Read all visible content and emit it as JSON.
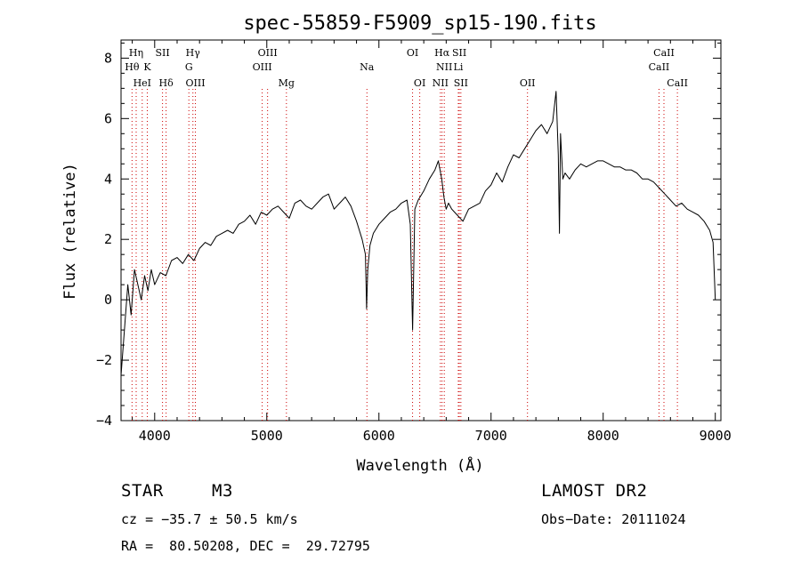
{
  "chart_data": {
    "type": "line",
    "title": "spec-55859-F5909_sp15-190.fits",
    "xlabel": "Wavelength (Å)",
    "ylabel": "Flux (relative)",
    "xlim": [
      3700,
      9050
    ],
    "ylim": [
      -4,
      8.6
    ],
    "xticks": [
      4000,
      5000,
      6000,
      7000,
      8000,
      9000
    ],
    "yticks": [
      -4,
      -2,
      0,
      2,
      4,
      6,
      8
    ],
    "grid": false,
    "line_color": "#000000",
    "marker_color": "#cc0000",
    "series": [
      {
        "x": [
          3700,
          3730,
          3760,
          3790,
          3820,
          3850,
          3880,
          3910,
          3940,
          3970,
          4000,
          4050,
          4100,
          4150,
          4200,
          4250,
          4300,
          4350,
          4400,
          4450,
          4500,
          4550,
          4600,
          4650,
          4700,
          4750,
          4800,
          4850,
          4900,
          4950,
          5000,
          5050,
          5100,
          5150,
          5200,
          5250,
          5300,
          5350,
          5400,
          5450,
          5500,
          5550,
          5600,
          5650,
          5700,
          5750,
          5800,
          5850,
          5880,
          5890,
          5900,
          5920,
          5950,
          6000,
          6050,
          6100,
          6150,
          6200,
          6250,
          6280,
          6300,
          6320,
          6350,
          6400,
          6450,
          6500,
          6530,
          6560,
          6580,
          6600,
          6620,
          6650,
          6700,
          6750,
          6800,
          6850,
          6900,
          6950,
          7000,
          7050,
          7100,
          7150,
          7200,
          7250,
          7300,
          7350,
          7400,
          7450,
          7500,
          7550,
          7580,
          7600,
          7610,
          7620,
          7640,
          7660,
          7700,
          7750,
          7800,
          7850,
          7900,
          7950,
          8000,
          8050,
          8100,
          8150,
          8200,
          8250,
          8300,
          8350,
          8400,
          8450,
          8500,
          8550,
          8600,
          8650,
          8700,
          8750,
          8800,
          8850,
          8900,
          8950,
          8980,
          9000
        ],
        "y": [
          -2.5,
          -1.0,
          0.5,
          -0.5,
          1.0,
          0.5,
          0.0,
          0.8,
          0.3,
          1.0,
          0.5,
          0.9,
          0.8,
          1.3,
          1.4,
          1.2,
          1.5,
          1.3,
          1.7,
          1.9,
          1.8,
          2.1,
          2.2,
          2.3,
          2.2,
          2.5,
          2.6,
          2.8,
          2.5,
          2.9,
          2.8,
          3.0,
          3.1,
          2.9,
          2.7,
          3.2,
          3.3,
          3.1,
          3.0,
          3.2,
          3.4,
          3.5,
          3.0,
          3.2,
          3.4,
          3.1,
          2.6,
          2.0,
          1.5,
          -0.3,
          1.0,
          1.8,
          2.2,
          2.5,
          2.7,
          2.9,
          3.0,
          3.2,
          3.3,
          2.5,
          -1.0,
          3.0,
          3.3,
          3.6,
          4.0,
          4.3,
          4.6,
          4.0,
          3.4,
          3.0,
          3.2,
          3.0,
          2.8,
          2.6,
          3.0,
          3.1,
          3.2,
          3.6,
          3.8,
          4.2,
          3.9,
          4.4,
          4.8,
          4.7,
          5.0,
          5.3,
          5.6,
          5.8,
          5.5,
          5.9,
          6.9,
          4.8,
          2.2,
          5.5,
          4.0,
          4.2,
          4.0,
          4.3,
          4.5,
          4.4,
          4.5,
          4.6,
          4.6,
          4.5,
          4.4,
          4.4,
          4.3,
          4.3,
          4.2,
          4.0,
          4.0,
          3.9,
          3.7,
          3.5,
          3.3,
          3.1,
          3.2,
          3.0,
          2.9,
          2.8,
          2.6,
          2.3,
          1.9,
          0.0
        ]
      }
    ],
    "lines": [
      {
        "label": "Hη",
        "x": 3835,
        "row": 1
      },
      {
        "label": "Hθ",
        "x": 3798,
        "row": 2
      },
      {
        "label": "K",
        "x": 3934,
        "row": 2
      },
      {
        "label": "HeI",
        "x": 3889,
        "row": 3
      },
      {
        "label": "SII",
        "x": 4070,
        "row": 1
      },
      {
        "label": "Hδ",
        "x": 4102,
        "row": 3
      },
      {
        "label": "Hγ",
        "x": 4341,
        "row": 1
      },
      {
        "label": "G",
        "x": 4305,
        "row": 2
      },
      {
        "label": "OIII",
        "x": 4363,
        "row": 3
      },
      {
        "label": "OIII",
        "x": 5007,
        "row": 1
      },
      {
        "label": "OIII",
        "x": 4959,
        "row": 2
      },
      {
        "label": "Mg",
        "x": 5175,
        "row": 3
      },
      {
        "label": "Na",
        "x": 5893,
        "row": 2
      },
      {
        "label": "OI",
        "x": 6300,
        "row": 1
      },
      {
        "label": "OI",
        "x": 6364,
        "row": 3
      },
      {
        "label": "Hα",
        "x": 6563,
        "row": 1
      },
      {
        "label": "SII",
        "x": 6717,
        "row": 1
      },
      {
        "label": "NII",
        "x": 6583,
        "row": 2
      },
      {
        "label": "Li",
        "x": 6708,
        "row": 2
      },
      {
        "label": "NII",
        "x": 6548,
        "row": 3
      },
      {
        "label": "SII",
        "x": 6731,
        "row": 3
      },
      {
        "label": "OII",
        "x": 7325,
        "row": 3
      },
      {
        "label": "CaII",
        "x": 8542,
        "row": 1
      },
      {
        "label": "CaII",
        "x": 8498,
        "row": 2
      },
      {
        "label": "CaII",
        "x": 8662,
        "row": 3
      }
    ]
  },
  "info": {
    "object_class": "STAR",
    "subclass": "M3",
    "survey": "LAMOST DR2",
    "cz": "cz = −35.7 ± 50.5 km/s",
    "obs_date": "Obs−Date: 20111024",
    "coords": "RA =  80.50208, DEC =  29.72795"
  }
}
